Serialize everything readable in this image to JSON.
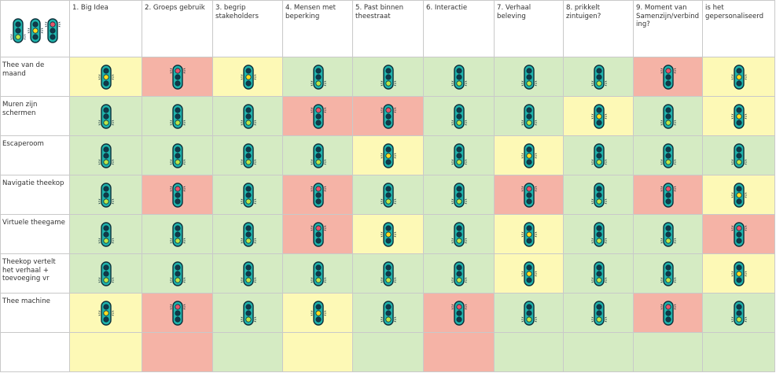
{
  "colors": {
    "green": "#d5ebc3",
    "yellow": "#fdf9b6",
    "red": "#f5b3a6",
    "light_green_on": "#b8e64a",
    "light_yellow_on": "#ffdd22",
    "light_red_on": "#e6556b",
    "light_off": "#113a4a",
    "traffic_body": "#1fb3ac",
    "traffic_outline": "#0d2f3a"
  },
  "header": {
    "corner_icon": "traffic-lights-icon",
    "columns": [
      "1. Big Idea",
      "2. Groeps gebruik",
      "3. begrip stakeholders",
      "4. Mensen met beperking",
      "5. Past binnen theestraat",
      "6. Interactie",
      "7. Verhaal beleving",
      "8. prikkelt zintuigen?",
      "9. Moment van Samenzijn/verbinding?",
      "is het gepersonaliseerd"
    ]
  },
  "rows": [
    {
      "label": "Thee van de maand",
      "cells": [
        "Y",
        "R",
        "Y",
        "G",
        "G",
        "G",
        "G",
        "G",
        "R",
        "Y"
      ]
    },
    {
      "label": "Muren zijn schermen",
      "cells": [
        "G",
        "G",
        "G",
        "R",
        "R",
        "G",
        "G",
        "Y",
        "G",
        "Y"
      ]
    },
    {
      "label": "Escaperoom",
      "cells": [
        "G",
        "G",
        "G",
        "G",
        "Y",
        "G",
        "Y",
        "G",
        "G",
        "G"
      ]
    },
    {
      "label": "Navigatie theekop",
      "cells": [
        "G",
        "R",
        "G",
        "R",
        "G",
        "G",
        "R",
        "G",
        "R",
        "Y"
      ]
    },
    {
      "label": "Virtuele theegame",
      "cells": [
        "G",
        "G",
        "G",
        "R",
        "Y",
        "G",
        "Y",
        "G",
        "G",
        "R"
      ]
    },
    {
      "label": "Theekop vertelt het verhaal + toevoeging vr",
      "cells": [
        "G",
        "G",
        "G",
        "G",
        "G",
        "G",
        "Y",
        "G",
        "G",
        "Y"
      ]
    },
    {
      "label": "Thee machine",
      "cells": [
        "Y",
        "R",
        "G",
        "Y",
        "G",
        "R",
        "G",
        "G",
        "R",
        "G"
      ]
    },
    {
      "label": "",
      "cells": [
        "Y",
        "R",
        "G",
        "Y",
        "G",
        "R",
        "G",
        "G",
        "G",
        "G"
      ],
      "empty": true
    }
  ]
}
